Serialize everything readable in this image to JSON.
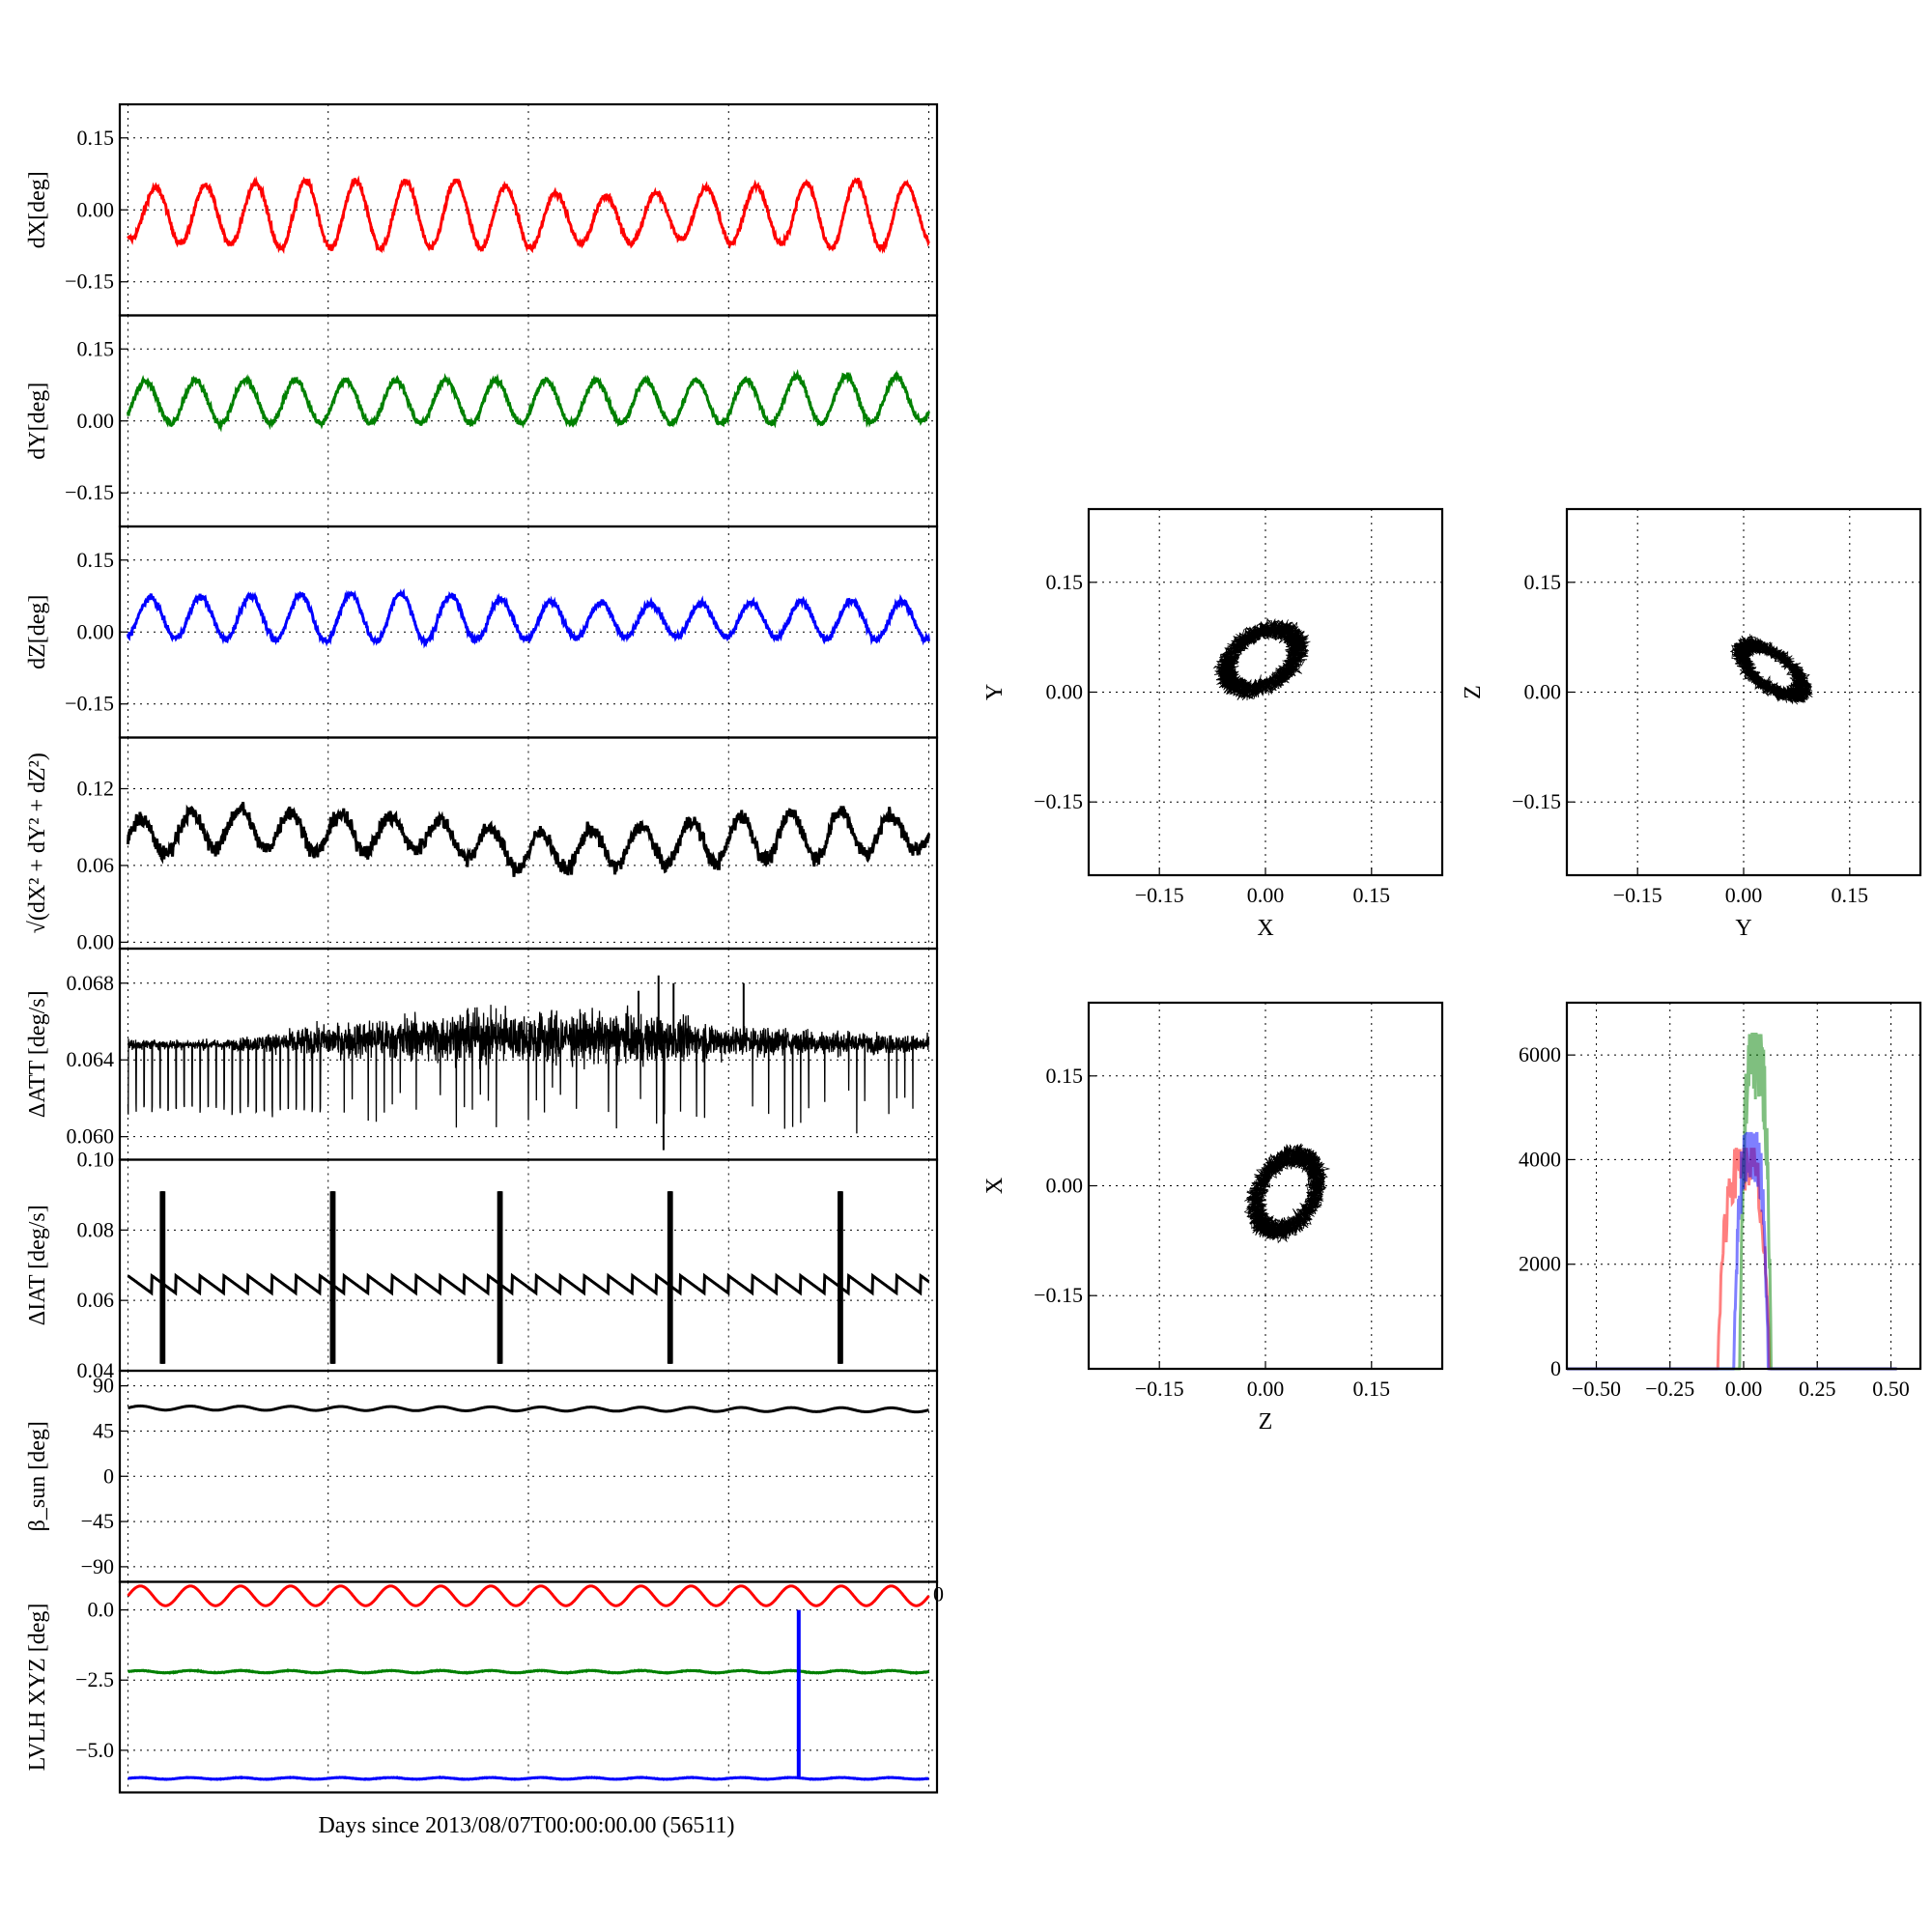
{
  "figure": {
    "xlabel": "Days since 2013/08/07T00:00:00.00 (56511)"
  },
  "chart_data": [
    {
      "id": "dx",
      "type": "line",
      "ylabel": "dX[deg]",
      "ylim": [
        -0.22,
        0.22
      ],
      "yticks": [
        0.15,
        0.0,
        -0.15
      ],
      "ytick_labels": [
        "0.15",
        "0.00",
        "−0.15"
      ],
      "xlim": [
        0,
        8
      ],
      "grid": true,
      "series": [
        {
          "color": "#ff0000",
          "kind": "sine",
          "x": [
            0,
            0.5,
            1,
            1.5,
            2,
            2.5,
            3,
            3.5,
            4,
            4.5,
            5,
            5.5,
            6,
            6.5,
            7,
            7.5,
            8
          ],
          "mean": [
            -0.01,
            -0.01,
            -0.01,
            -0.01,
            -0.01,
            -0.01,
            -0.01,
            -0.01,
            -0.02,
            -0.02,
            -0.02,
            -0.01,
            -0.01,
            -0.01,
            -0.01,
            -0.01,
            -0.01
          ],
          "amp": [
            0.05,
            0.06,
            0.06,
            0.07,
            0.07,
            0.07,
            0.07,
            0.07,
            0.06,
            0.05,
            0.05,
            0.05,
            0.06,
            0.06,
            0.07,
            0.07,
            0.06
          ],
          "period": 0.5,
          "phase": 0.3,
          "noise": 0.006
        }
      ]
    },
    {
      "id": "dy",
      "type": "line",
      "ylabel": "dY[deg]",
      "ylim": [
        -0.22,
        0.22
      ],
      "yticks": [
        0.15,
        0.0,
        -0.15
      ],
      "ytick_labels": [
        "0.15",
        "0.00",
        "−0.15"
      ],
      "xlim": [
        0,
        8
      ],
      "grid": true,
      "series": [
        {
          "color": "#008000",
          "kind": "sine",
          "x": [
            0,
            1,
            2,
            3,
            4,
            5,
            6,
            7,
            8
          ],
          "mean": [
            0.04,
            0.04,
            0.04,
            0.04,
            0.04,
            0.04,
            0.04,
            0.045,
            0.045
          ],
          "amp": [
            0.045,
            0.045,
            0.045,
            0.045,
            0.045,
            0.045,
            0.045,
            0.05,
            0.045
          ],
          "period": 0.5,
          "phase": 0.1,
          "noise": 0.006
        }
      ]
    },
    {
      "id": "dz",
      "type": "line",
      "ylabel": "dZ[deg]",
      "ylim": [
        -0.22,
        0.22
      ],
      "yticks": [
        0.15,
        0.0,
        -0.15
      ],
      "ytick_labels": [
        "0.15",
        "0.00",
        "−0.15"
      ],
      "xlim": [
        0,
        8
      ],
      "grid": true,
      "series": [
        {
          "color": "#0000ff",
          "kind": "sine",
          "x": [
            0,
            1,
            2,
            3,
            4,
            5,
            6,
            7,
            8
          ],
          "mean": [
            0.03,
            0.03,
            0.03,
            0.03,
            0.025,
            0.025,
            0.025,
            0.025,
            0.025
          ],
          "amp": [
            0.04,
            0.045,
            0.05,
            0.05,
            0.04,
            0.035,
            0.035,
            0.04,
            0.04
          ],
          "period": 0.5,
          "phase": 0.2,
          "noise": 0.006
        }
      ]
    },
    {
      "id": "mag",
      "type": "line",
      "ylabel": "√(dX² + dY² + dZ²)",
      "ylim": [
        -0.005,
        0.16
      ],
      "yticks": [
        0.12,
        0.06,
        0.0
      ],
      "ytick_labels": [
        "0.12",
        "0.06",
        "0.00"
      ],
      "xlim": [
        0,
        8
      ],
      "grid": true,
      "series": [
        {
          "color": "#000000",
          "kind": "sine",
          "x": [
            0,
            1,
            2,
            3,
            4,
            5,
            6,
            7,
            8
          ],
          "mean": [
            0.08,
            0.09,
            0.085,
            0.085,
            0.07,
            0.075,
            0.08,
            0.085,
            0.085
          ],
          "amp": [
            0.015,
            0.015,
            0.015,
            0.012,
            0.015,
            0.015,
            0.018,
            0.018,
            0.012
          ],
          "period": 0.5,
          "phase": 0.0,
          "noise": 0.006
        }
      ]
    },
    {
      "id": "datt",
      "type": "line",
      "ylabel": "ΔATT [deg/s]",
      "ylim": [
        0.0588,
        0.0698
      ],
      "yticks": [
        0.068,
        0.064,
        0.06
      ],
      "ytick_labels": [
        "0.068",
        "0.064",
        "0.060"
      ],
      "xlim": [
        0,
        8
      ],
      "grid": true,
      "series": [
        {
          "color": "#000000",
          "kind": "noise",
          "x": [
            0,
            1,
            2,
            3,
            4,
            5,
            6,
            7,
            8
          ],
          "base": [
            0.0648,
            0.0648,
            0.065,
            0.0652,
            0.0652,
            0.0651,
            0.065,
            0.0649,
            0.0648
          ],
          "noise": [
            0.00025,
            0.00025,
            0.0008,
            0.0012,
            0.0013,
            0.0012,
            0.0008,
            0.0006,
            0.0004
          ],
          "dip_low": 0.0615,
          "dip_every": 0.08,
          "spikes": [
            [
              5.3,
              0.0684
            ],
            [
              5.35,
              0.0593
            ],
            [
              5.45,
              0.068
            ],
            [
              6.15,
              0.068
            ],
            [
              5.1,
              0.0676
            ]
          ]
        }
      ]
    },
    {
      "id": "diat",
      "type": "line",
      "ylabel": "ΔIAT [deg/s]",
      "ylim": [
        0.04,
        0.1
      ],
      "yticks": [
        0.1,
        0.08,
        0.06,
        0.04
      ],
      "ytick_labels": [
        "0.10",
        "0.08",
        "0.06",
        "0.04"
      ],
      "xlim": [
        0,
        8
      ],
      "grid": true,
      "series": [
        {
          "color": "#000000",
          "kind": "sawtooth",
          "low": 0.062,
          "high": 0.067,
          "period": 0.24,
          "bursts": [
            0.33,
            2.03,
            3.7,
            5.4,
            7.1
          ],
          "burst_low": 0.042,
          "burst_high": 0.091
        }
      ]
    },
    {
      "id": "beta",
      "type": "line",
      "ylabel": "β_sun [deg]",
      "ylim": [
        -105,
        105
      ],
      "yticks": [
        90,
        45,
        0,
        -45,
        -90
      ],
      "ytick_labels": [
        "90",
        "45",
        "0",
        "−45",
        "−90"
      ],
      "xlim": [
        0,
        8
      ],
      "grid": true,
      "series": [
        {
          "color": "#000000",
          "kind": "sine",
          "x": [
            0,
            4,
            8
          ],
          "mean": [
            68,
            67,
            66
          ],
          "amp": [
            2,
            2,
            2
          ],
          "period": 0.5,
          "phase": 0.0,
          "noise": 0.0
        }
      ]
    },
    {
      "id": "lvlh",
      "type": "line",
      "ylabel": "LVLH XYZ [deg]",
      "ylim": [
        -6.5,
        1.0
      ],
      "yticks": [
        0.0,
        -2.5,
        -5.0
      ],
      "ytick_labels": [
        "0.0",
        "−2.5",
        "−5.0"
      ],
      "xlim": [
        0,
        8
      ],
      "grid": true,
      "overflow_tick": "0",
      "series": [
        {
          "color": "#ff0000",
          "kind": "sine",
          "x": [
            0,
            8
          ],
          "mean": [
            0.5,
            0.5
          ],
          "amp": [
            0.35,
            0.35
          ],
          "period": 0.5,
          "phase": 0.0,
          "noise": 0.0
        },
        {
          "color": "#008000",
          "kind": "sine",
          "x": [
            0,
            8
          ],
          "mean": [
            -2.2,
            -2.2
          ],
          "amp": [
            0.04,
            0.04
          ],
          "period": 0.5,
          "phase": 0.0,
          "noise": 0.01
        },
        {
          "color": "#0000ff",
          "kind": "sine",
          "x": [
            0,
            8
          ],
          "mean": [
            -6.0,
            -6.0
          ],
          "amp": [
            0.03,
            0.03
          ],
          "period": 0.5,
          "phase": 0.0,
          "noise": 0.008,
          "spike": {
            "x": 6.7,
            "top": 0.0
          }
        }
      ]
    },
    {
      "id": "xy",
      "type": "scatter",
      "xlabel": "X",
      "ylabel": "Y",
      "xlim": [
        -0.25,
        0.25
      ],
      "ylim": [
        -0.25,
        0.25
      ],
      "xticks": [
        -0.15,
        0.0,
        0.15
      ],
      "xtick_labels": [
        "−0.15",
        "0.00",
        "0.15"
      ],
      "yticks": [
        0.15,
        0.0,
        -0.15
      ],
      "ytick_labels": [
        "0.15",
        "0.00",
        "−0.15"
      ],
      "grid": true,
      "ring": {
        "cx": -0.005,
        "cy": 0.045,
        "r": 0.055,
        "aspect": 0.65,
        "tilt": 30,
        "color": "#000000"
      }
    },
    {
      "id": "yz",
      "type": "scatter",
      "xlabel": "Y",
      "ylabel": "Z",
      "xlim": [
        -0.25,
        0.25
      ],
      "ylim": [
        -0.25,
        0.25
      ],
      "xticks": [
        -0.15,
        0.0,
        0.15
      ],
      "xtick_labels": [
        "−0.15",
        "0.00",
        "0.15"
      ],
      "yticks": [
        0.15,
        0.0,
        -0.15
      ],
      "ytick_labels": [
        "0.15",
        "0.00",
        "−0.15"
      ],
      "grid": true,
      "ring": {
        "cx": 0.04,
        "cy": 0.03,
        "r": 0.05,
        "aspect": 0.45,
        "tilt": -35,
        "color": "#000000"
      }
    },
    {
      "id": "zx",
      "type": "scatter",
      "xlabel": "Z",
      "ylabel": "X",
      "xlim": [
        -0.25,
        0.25
      ],
      "ylim": [
        -0.25,
        0.25
      ],
      "xticks": [
        -0.15,
        0.0,
        0.15
      ],
      "xtick_labels": [
        "−0.15",
        "0.00",
        "0.15"
      ],
      "yticks": [
        0.15,
        0.0,
        -0.15
      ],
      "ytick_labels": [
        "0.15",
        "0.00",
        "−0.15"
      ],
      "grid": true,
      "ring": {
        "cx": 0.03,
        "cy": -0.01,
        "r": 0.055,
        "aspect": 0.7,
        "tilt": 60,
        "color": "#000000"
      }
    },
    {
      "id": "hist",
      "type": "histogram",
      "xlim": [
        -0.6,
        0.6
      ],
      "ylim": [
        0,
        7000
      ],
      "xticks": [
        -0.5,
        -0.25,
        0.0,
        0.25,
        0.5
      ],
      "xtick_labels": [
        "−0.50",
        "−0.25",
        "0.00",
        "0.25",
        "0.50"
      ],
      "yticks": [
        6000,
        4000,
        2000,
        0
      ],
      "ytick_labels": [
        "6000",
        "4000",
        "2000",
        "0"
      ],
      "grid": true,
      "series": [
        {
          "color": "#ff0000",
          "opacity": 0.5,
          "center": 0.0,
          "halfwidth": 0.09,
          "peak": 4200
        },
        {
          "color": "#008000",
          "opacity": 0.5,
          "center": 0.04,
          "halfwidth": 0.055,
          "peak": 6400
        },
        {
          "color": "#0000ff",
          "opacity": 0.5,
          "center": 0.025,
          "halfwidth": 0.06,
          "peak": 4500
        }
      ]
    }
  ]
}
